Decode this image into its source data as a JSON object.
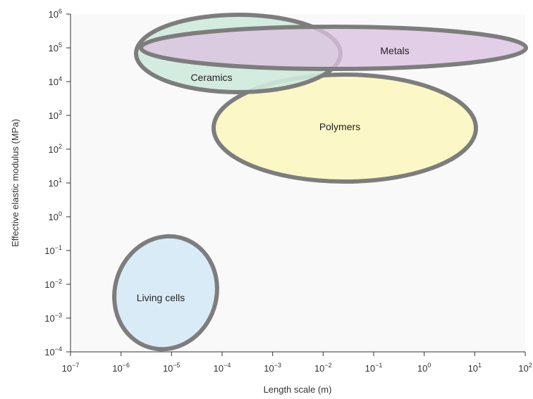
{
  "chart_data": {
    "type": "region",
    "title": "",
    "xlabel": "Length scale (m)",
    "ylabel": "Effective elastic modulus (MPa)",
    "xscale": "log",
    "yscale": "log",
    "xlim": [
      1e-07,
      100
    ],
    "ylim": [
      0.0001,
      1000000.0
    ],
    "grid": false,
    "plot_background": "#f9f9f9",
    "x_ticks": [
      {
        "base": "10",
        "exp": "−7"
      },
      {
        "base": "10",
        "exp": "−6"
      },
      {
        "base": "10",
        "exp": "−5"
      },
      {
        "base": "10",
        "exp": "−4"
      },
      {
        "base": "10",
        "exp": "−3"
      },
      {
        "base": "10",
        "exp": "−2"
      },
      {
        "base": "10",
        "exp": "−1"
      },
      {
        "base": "10",
        "exp": "0"
      },
      {
        "base": "10",
        "exp": "1"
      },
      {
        "base": "10",
        "exp": "2"
      }
    ],
    "y_ticks": [
      {
        "base": "10",
        "exp": "−4"
      },
      {
        "base": "10",
        "exp": "−3"
      },
      {
        "base": "10",
        "exp": "−2"
      },
      {
        "base": "10",
        "exp": "−1"
      },
      {
        "base": "10",
        "exp": "0"
      },
      {
        "base": "10",
        "exp": "1"
      },
      {
        "base": "10",
        "exp": "2"
      },
      {
        "base": "10",
        "exp": "3"
      },
      {
        "base": "10",
        "exp": "4"
      },
      {
        "base": "10",
        "exp": "5"
      },
      {
        "base": "10",
        "exp": "6"
      }
    ],
    "regions": [
      {
        "name": "Polymers",
        "color": "#fbf6c0",
        "x_range": [
          2e-05,
          100
        ],
        "y_range": [
          10,
          10000
        ],
        "center": [
          0.03,
          400
        ],
        "label_at": [
          0.03,
          400
        ]
      },
      {
        "name": "Ceramics",
        "color": "#cfe9dd",
        "x_range": [
          1.5e-06,
          0.05
        ],
        "y_range": [
          5000,
          800000
        ],
        "center": [
          0.00025,
          70000
        ],
        "label_at": [
          0.0001,
          15000
        ]
      },
      {
        "name": "Metals",
        "color": "#dcc2e2",
        "x_range": [
          2e-06,
          100
        ],
        "y_range": [
          10000,
          800000
        ],
        "center": [
          0.015,
          90000
        ],
        "label_at": [
          1.5,
          100000
        ]
      },
      {
        "name": "Living cells",
        "color": "#d6e9f7",
        "x_range": [
          1e-06,
          0.0004
        ],
        "y_range": [
          0.0001,
          0.5
        ],
        "center": [
          1.2e-05,
          0.005
        ],
        "label_at": [
          6e-06,
          0.004
        ]
      }
    ],
    "stroke_color": "#7d7d7d"
  }
}
